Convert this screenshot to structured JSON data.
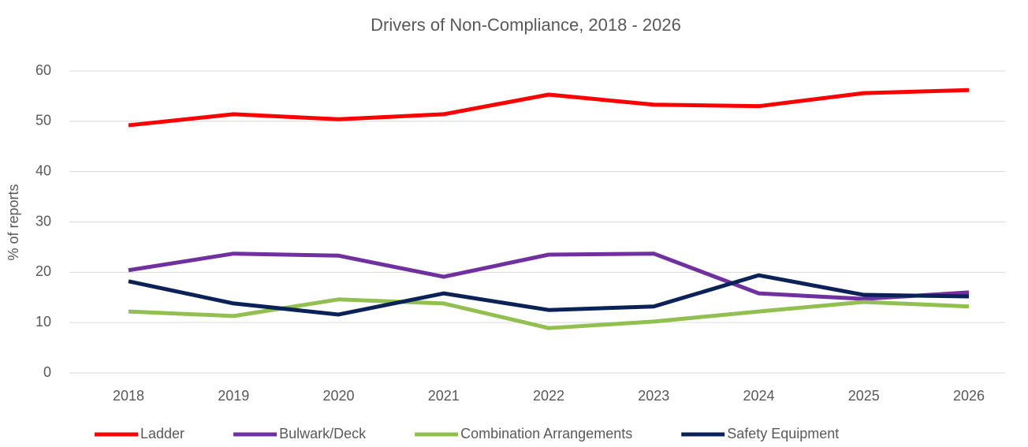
{
  "chart_data": {
    "type": "line",
    "title": "Drivers of Non-Compliance, 2018 - 2026",
    "y_label": "% of reports",
    "categories": [
      "2018",
      "2019",
      "2020",
      "2021",
      "2022",
      "2023",
      "2024",
      "2025",
      "2026"
    ],
    "series": [
      {
        "name": "Ladder",
        "color": "#ff0000",
        "values": [
          49.2,
          51.4,
          50.4,
          51.4,
          55.3,
          53.3,
          53.0,
          55.6,
          56.2
        ]
      },
      {
        "name": "Bulwark/Deck",
        "color": "#7030a0",
        "values": [
          20.4,
          23.7,
          23.3,
          19.1,
          23.5,
          23.7,
          15.8,
          14.7,
          16.0
        ]
      },
      {
        "name": "Combination Arrangements",
        "color": "#92c050",
        "values": [
          12.2,
          11.3,
          14.6,
          13.8,
          8.9,
          10.2,
          12.2,
          14.1,
          13.2
        ]
      },
      {
        "name": "Safety Equipment",
        "color": "#0b2259",
        "values": [
          18.2,
          13.8,
          11.6,
          15.8,
          12.5,
          13.2,
          19.4,
          15.5,
          15.2
        ]
      }
    ],
    "ylim": [
      0,
      60
    ],
    "yticks": [
      0,
      10,
      20,
      30,
      40,
      50,
      60
    ],
    "grid": true,
    "legend": "bottom"
  }
}
